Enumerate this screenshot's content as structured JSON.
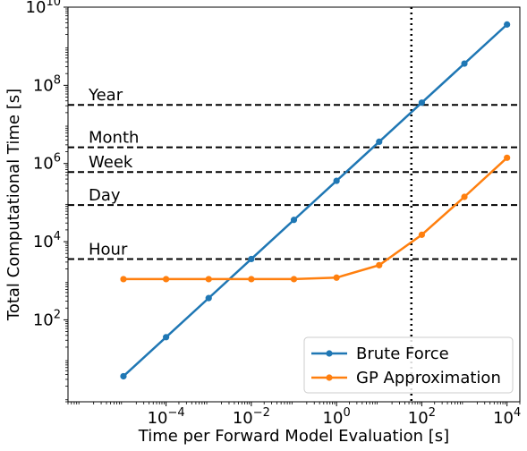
{
  "chart_data": {
    "type": "line",
    "xlabel": "Time per Forward Model Evaluation [s]",
    "ylabel": "Total Computational Time [s]",
    "xscale": "log",
    "yscale": "log",
    "xlim": [
      5e-07,
      20000
    ],
    "ylim": [
      0.8,
      10000000000
    ],
    "x_ticks": [
      {
        "value": 0.0001,
        "base": "10",
        "exp": "−4"
      },
      {
        "value": 0.01,
        "base": "10",
        "exp": "−2"
      },
      {
        "value": 1,
        "base": "10",
        "exp": "0"
      },
      {
        "value": 100,
        "base": "10",
        "exp": "2"
      },
      {
        "value": 10000,
        "base": "10",
        "exp": "4"
      }
    ],
    "y_ticks": [
      {
        "value": 100,
        "base": "10",
        "exp": "2"
      },
      {
        "value": 10000,
        "base": "10",
        "exp": "4"
      },
      {
        "value": 1000000,
        "base": "10",
        "exp": "6"
      },
      {
        "value": 100000000,
        "base": "10",
        "exp": "8"
      },
      {
        "value": 10000000000,
        "base": "10",
        "exp": "10"
      }
    ],
    "x": [
      1e-05,
      0.0001,
      0.001,
      0.01,
      0.1,
      1,
      10,
      100,
      1000,
      10000
    ],
    "series": [
      {
        "name": "Brute Force",
        "color": "#1f77b4",
        "values": [
          3.6,
          36,
          360,
          3600,
          36000,
          360000,
          3600000,
          36000000,
          360000000,
          3600000000
        ]
      },
      {
        "name": "GP Approximation",
        "color": "#ff7f0e",
        "values": [
          1100,
          1100,
          1100,
          1100,
          1100,
          1200,
          2500,
          15000,
          140000,
          1400000
        ]
      }
    ],
    "reference_lines": [
      {
        "label": "Hour",
        "value": 3600
      },
      {
        "label": "Day",
        "value": 86400
      },
      {
        "label": "Week",
        "value": 604800
      },
      {
        "label": "Month",
        "value": 2592000
      },
      {
        "label": "Year",
        "value": 31536000
      }
    ],
    "vertical_line": {
      "value": 57
    },
    "legend": {
      "placement": "bottom-right"
    },
    "grid": false
  }
}
